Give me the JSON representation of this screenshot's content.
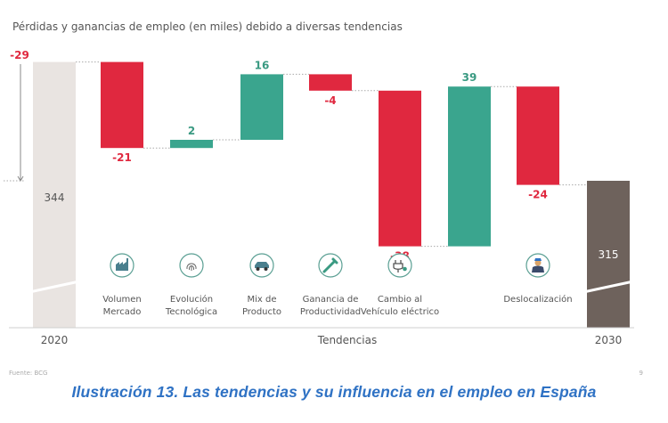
{
  "chart_data": {
    "type": "bar",
    "variant": "waterfall",
    "title": "Pérdidas y ganancias de empleo (en miles) debido a diversas tendencias",
    "xlabel": "Tendencias",
    "ylabel": "",
    "start": {
      "category": "2020",
      "value": 344
    },
    "end": {
      "category": "2030",
      "value": 315
    },
    "total_change_label": "-29",
    "steps": [
      {
        "label_lines": [
          "Volumen",
          "Mercado"
        ],
        "value": -21,
        "value_label": "-21",
        "icon": "factory-icon"
      },
      {
        "label_lines": [
          "Evolución",
          "Tecnológica"
        ],
        "value": 2,
        "value_label": "2",
        "icon": "fingerprint-icon"
      },
      {
        "label_lines": [
          "Mix de",
          "Producto"
        ],
        "value": 16,
        "value_label": "16",
        "icon": "car-icon"
      },
      {
        "label_lines": [
          "Ganancia de",
          "Productividad"
        ],
        "value": -4,
        "value_label": "-4",
        "icon": "wrench-icon"
      },
      {
        "label_lines": [
          "Cambio al",
          "Vehículo eléctrico"
        ],
        "value": -38,
        "value_label": "-38",
        "icon": "ev-plug-icon"
      },
      {
        "label_lines": [],
        "value": 39,
        "value_label": "39",
        "icon": ""
      },
      {
        "label_lines": [
          "Deslocalización"
        ],
        "value": -24,
        "value_label": "-24",
        "icon": "worker-icon"
      }
    ],
    "colors": {
      "negative": "#e0283f",
      "positive": "#3aa58e",
      "start": "#e9e4e1",
      "end": "#6e625c"
    },
    "grid": false,
    "legend": "none"
  },
  "source": "Fuente: BCG",
  "page_number": "9",
  "caption": "Ilustración 13. Las tendencias y su influencia en el empleo en España"
}
